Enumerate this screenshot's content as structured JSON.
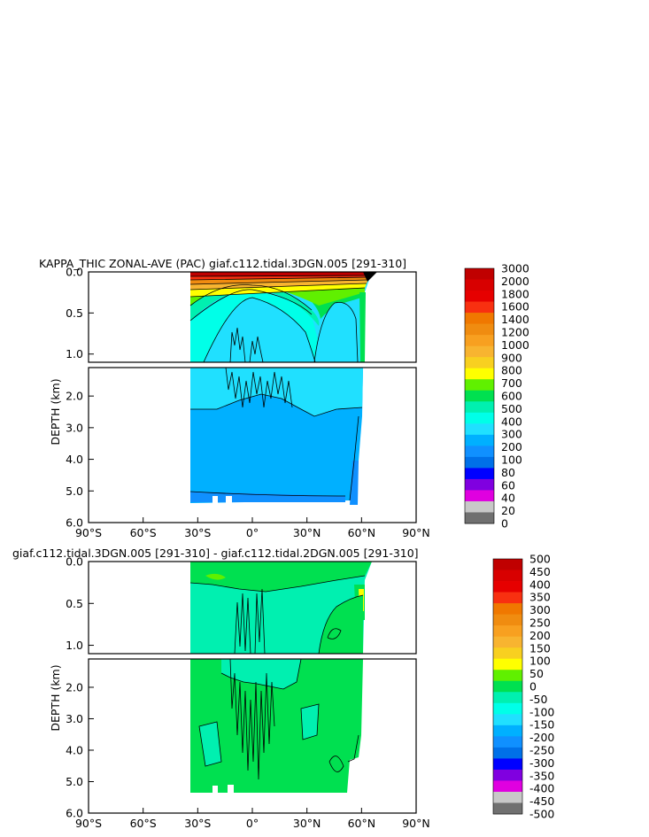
{
  "chart_data": [
    {
      "type": "heatmap",
      "title": "KAPPA_THIC ZONAL-AVE (PAC) giaf.c112.tidal.3DGN.005 [291-310]",
      "ylabel": "DEPTH (km)",
      "x_ticks": [
        "90°S",
        "60°S",
        "30°S",
        "0°",
        "30°N",
        "60°N",
        "90°N"
      ],
      "y_ticks_upper": [
        "0.0",
        "0.5",
        "1.0"
      ],
      "y_ticks_lower": [
        "2.0",
        "3.0",
        "4.0",
        "5.0",
        "6.0"
      ],
      "xlim": [
        -90,
        90
      ],
      "ylim": [
        0,
        6
      ],
      "data_extent_lat": [
        -33,
        64
      ],
      "colorbar": {
        "labels": [
          "3000",
          "2000",
          "1800",
          "1600",
          "1400",
          "1200",
          "1000",
          "900",
          "800",
          "700",
          "600",
          "500",
          "400",
          "300",
          "200",
          "100",
          "80",
          "60",
          "40",
          "20",
          "0"
        ],
        "colors": [
          "#c00000",
          "#d80000",
          "#e60000",
          "#f83010",
          "#f07800",
          "#f08c10",
          "#f8a020",
          "#f8b430",
          "#f8d020",
          "#ffff00",
          "#60f000",
          "#00e050",
          "#00f0b0",
          "#00ffe8",
          "#20e0ff",
          "#00b0ff",
          "#1090ff",
          "#0070e8",
          "#0000ff",
          "#8000e0",
          "#e000e0",
          "#c8c8c8",
          "#707070"
        ]
      }
    },
    {
      "type": "heatmap",
      "title": "giaf.c112.tidal.3DGN.005 [291-310] - giaf.c112.tidal.2DGN.005 [291-310]",
      "ylabel": "DEPTH (km)",
      "x_ticks": [
        "90°S",
        "60°S",
        "30°S",
        "0°",
        "30°N",
        "60°N",
        "90°N"
      ],
      "y_ticks_upper": [
        "0.0",
        "0.5",
        "1.0"
      ],
      "y_ticks_lower": [
        "2.0",
        "3.0",
        "4.0",
        "5.0",
        "6.0"
      ],
      "xlim": [
        -90,
        90
      ],
      "ylim": [
        0,
        6
      ],
      "data_extent_lat": [
        -33,
        62
      ],
      "colorbar": {
        "labels": [
          "500",
          "450",
          "400",
          "350",
          "300",
          "250",
          "200",
          "150",
          "100",
          "50",
          "0",
          "-50",
          "-100",
          "-150",
          "-200",
          "-250",
          "-300",
          "-350",
          "-400",
          "-450",
          "-500"
        ],
        "colors": [
          "#c00000",
          "#d80000",
          "#e60000",
          "#f83010",
          "#f07800",
          "#f08c10",
          "#f8a020",
          "#f8b430",
          "#f8d020",
          "#ffff00",
          "#60f000",
          "#00e050",
          "#00f0b0",
          "#00ffe8",
          "#20e0ff",
          "#00b0ff",
          "#1090ff",
          "#0070e8",
          "#0000ff",
          "#8000e0",
          "#e000e0",
          "#c8c8c8",
          "#707070"
        ]
      }
    }
  ]
}
